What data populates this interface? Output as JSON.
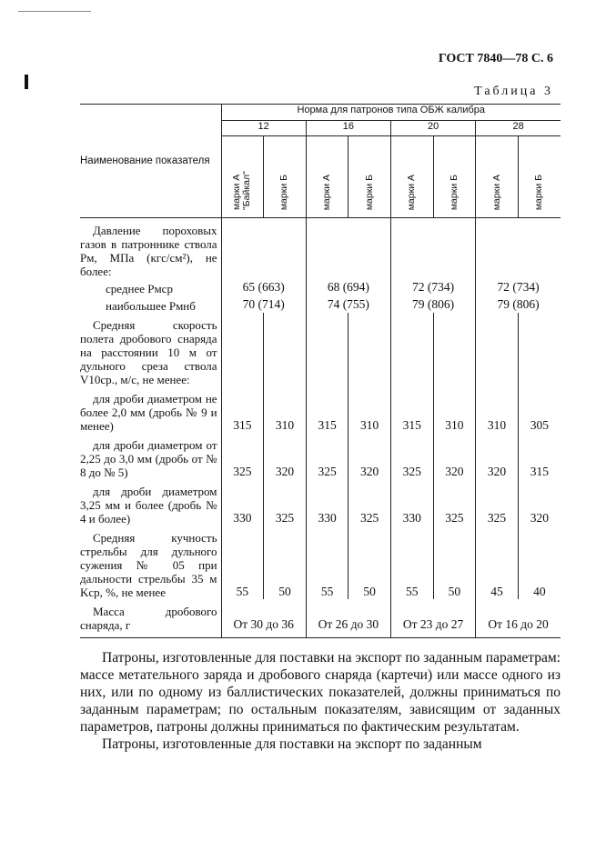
{
  "header": "ГОСТ 7840—78 С. 6",
  "table_label": "Таблица 3",
  "table": {
    "name_header": "Наименование показателя",
    "group_header": "Норма для патронов типа ОБЖ калибра",
    "calibers": [
      "12",
      "16",
      "20",
      "28"
    ],
    "subcolumns": [
      "марки А \"Байкал\"",
      "марки Б",
      "марки А",
      "марки Б",
      "марки А",
      "марки Б",
      "марки А",
      "марки Б"
    ],
    "rows": {
      "pressure_title": "Давление пороховых газов в патроннике ствола Pм, МПа (кгс/см²), не более:",
      "avg_label": "среднее Pмср",
      "avg_values": [
        "65 (663)",
        "68 (694)",
        "72 (734)",
        "72 (734)"
      ],
      "max_label": "наибольшее Pмнб",
      "max_values": [
        "70 (714)",
        "74 (755)",
        "79 (806)",
        "79 (806)"
      ],
      "speed_title": "Средняя скорость полета дробового снаряда на расстоянии 10 м от дульного среза ствола V10ср., м/с, не менее:",
      "shot1_label": "для дроби диаметром не более 2,0 мм (дробь № 9 и менее)",
      "shot1_values": [
        "315",
        "310",
        "315",
        "310",
        "315",
        "310",
        "310",
        "305"
      ],
      "shot2_label": "для дроби диаметром от 2,25 до 3,0 мм (дробь от № 8 до № 5)",
      "shot2_values": [
        "325",
        "320",
        "325",
        "320",
        "325",
        "320",
        "320",
        "315"
      ],
      "shot3_label": "для дроби диаметром 3,25 мм и более (дробь № 4 и более)",
      "shot3_values": [
        "330",
        "325",
        "330",
        "325",
        "330",
        "325",
        "325",
        "320"
      ],
      "density_label": "Средняя кучность стрельбы для дульного сужения № 05 при дальности стрельбы 35 м Kср, %, не менее",
      "density_values": [
        "55",
        "50",
        "55",
        "50",
        "55",
        "50",
        "45",
        "40"
      ],
      "mass_label": "Масса дробового снаряда, г",
      "mass_values": [
        "От 30 до 36",
        "От 26 до 30",
        "От 23 до 27",
        "От 16 до 20"
      ]
    }
  },
  "paragraphs": [
    "Патроны, изготовленные для поставки на экспорт по заданным параметрам: массе метательного заряда и дробового снаряда (картечи) или массе одного из них, или по одному из баллистических показателей, должны приниматься по заданным параметрам; по остальным показателям, зависящим от заданных параметров, патроны должны приниматься по фактическим результатам.",
    "Патроны, изготовленные для поставки на экспорт по заданным"
  ]
}
